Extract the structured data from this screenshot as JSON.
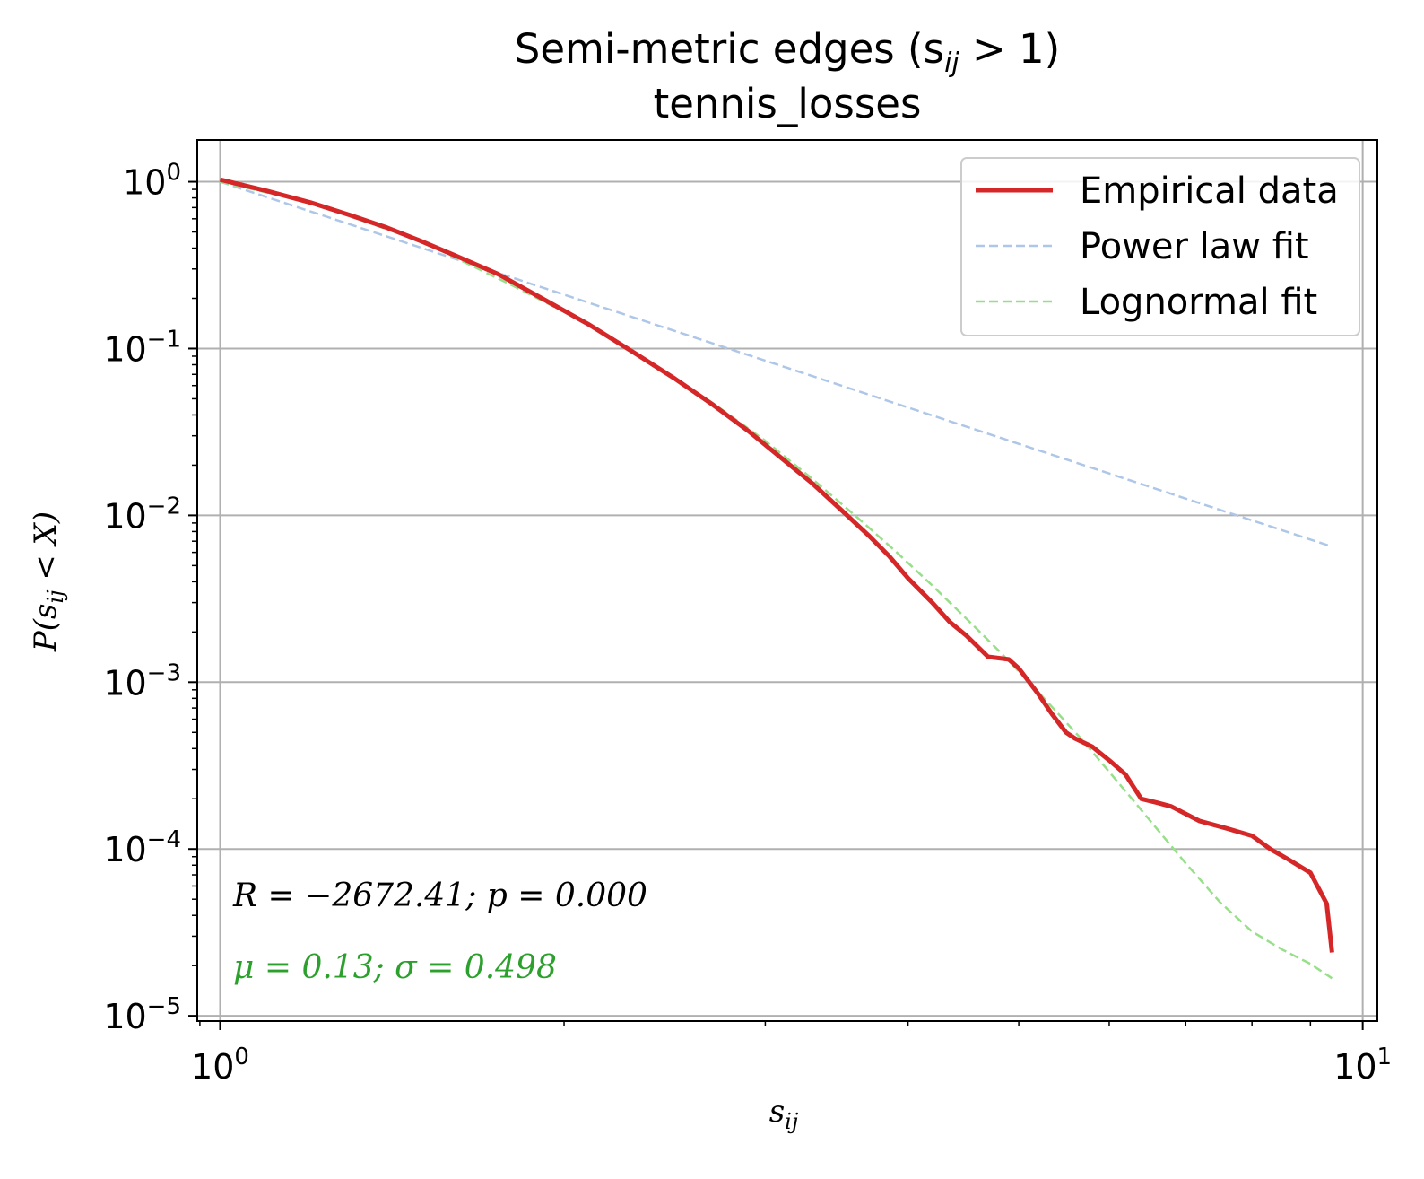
{
  "chart_data": {
    "type": "line",
    "title_line1": "Semi-metric edges (s",
    "title_sub": "ij",
    "title_rest": " > 1)",
    "subtitle": "tennis_losses",
    "xlabel": "s",
    "xlabel_sub": "ij",
    "ylabel": "P(s",
    "ylabel_sub": "ij",
    "ylabel_rest": " < X)",
    "xscale": "log",
    "yscale": "log",
    "xlim": [
      0.955,
      10.3
    ],
    "ylim": [
      9.3e-06,
      1.78
    ],
    "grid": true,
    "legend_position": "top-right",
    "x_ticks": [
      {
        "value": 1,
        "base": "10",
        "exp": "0"
      },
      {
        "value": 10,
        "base": "10",
        "exp": "1"
      }
    ],
    "y_ticks": [
      {
        "value": 1,
        "base": "10",
        "exp": "0"
      },
      {
        "value": 0.1,
        "base": "10",
        "exp": "−1"
      },
      {
        "value": 0.01,
        "base": "10",
        "exp": "−2"
      },
      {
        "value": 0.001,
        "base": "10",
        "exp": "−3"
      },
      {
        "value": 0.0001,
        "base": "10",
        "exp": "−4"
      },
      {
        "value": 1e-05,
        "base": "10",
        "exp": "−5"
      }
    ],
    "series": [
      {
        "name": "Empirical data",
        "color": "#d62728",
        "style": "solid",
        "x": [
          1.0,
          1.1,
          1.2,
          1.3,
          1.4,
          1.5,
          1.6,
          1.75,
          1.9,
          2.1,
          2.3,
          2.5,
          2.7,
          2.9,
          3.1,
          3.3,
          3.5,
          3.7,
          3.85,
          4.0,
          4.2,
          4.35,
          4.5,
          4.7,
          4.9,
          5.0,
          5.2,
          5.35,
          5.5,
          5.6,
          5.8,
          6.0,
          6.2,
          6.4,
          6.6,
          6.8,
          7.2,
          7.6,
          8.0,
          8.3,
          8.6,
          9.0,
          9.3,
          9.4
        ],
        "y": [
          1.03,
          0.88,
          0.75,
          0.63,
          0.53,
          0.44,
          0.365,
          0.28,
          0.205,
          0.14,
          0.095,
          0.066,
          0.046,
          0.032,
          0.022,
          0.0155,
          0.0107,
          0.0075,
          0.0057,
          0.0042,
          0.003,
          0.0023,
          0.0019,
          0.00142,
          0.00137,
          0.00121,
          0.00085,
          0.00064,
          0.0005,
          0.00046,
          0.00041,
          0.00034,
          0.00028,
          0.0002,
          0.00019,
          0.00018,
          0.000147,
          0.000133,
          0.00012,
          0.0001,
          8.7e-05,
          7.2e-05,
          4.7e-05,
          2.4e-05
        ]
      },
      {
        "name": "Power law fit",
        "color": "#aec7e8",
        "style": "dashed",
        "x": [
          1.0,
          9.4
        ],
        "y": [
          1.0,
          0.0065
        ]
      },
      {
        "name": "Lognormal fit",
        "color": "#98df8a",
        "style": "dashed",
        "x": [
          1.0,
          1.2,
          1.5,
          1.8,
          2.1,
          2.4,
          2.7,
          3.0,
          3.3,
          3.6,
          3.9,
          4.2,
          4.5,
          4.8,
          5.1,
          5.4,
          5.7,
          6.0,
          6.3,
          6.6,
          7.0,
          7.5,
          8.0,
          8.5,
          9.0,
          9.4
        ],
        "y": [
          1.0,
          0.75,
          0.44,
          0.24,
          0.14,
          0.08,
          0.047,
          0.028,
          0.0165,
          0.0099,
          0.0061,
          0.0038,
          0.0024,
          0.00155,
          0.00101,
          0.00066,
          0.00044,
          0.00029,
          0.000195,
          0.000133,
          8.2e-05,
          4.8e-05,
          3.2e-05,
          2.5e-05,
          2.05e-05,
          1.68e-05
        ]
      }
    ],
    "annotations": [
      {
        "text": "R = −2672.41; p = 0.000",
        "color": "#000000"
      },
      {
        "text": "μ = 0.13; σ = 0.498",
        "color": "#2ca02c"
      }
    ]
  }
}
